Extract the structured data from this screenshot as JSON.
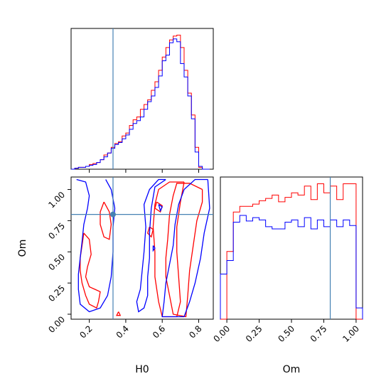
{
  "chart_data": {
    "type": "corner",
    "parameters": [
      "H0",
      "Om"
    ],
    "truth": {
      "H0": 0.33,
      "Om": 0.8
    },
    "colors": {
      "red": "#ff0000",
      "blue": "#0000ff",
      "truth": "#4682b4"
    },
    "panels": {
      "h0_hist": {
        "xlim": [
          0.1,
          0.88
        ],
        "xticks": [
          0.2,
          0.4,
          0.6,
          0.8
        ],
        "bin_edges": [
          0.1,
          0.12,
          0.14,
          0.16,
          0.18,
          0.2,
          0.22,
          0.24,
          0.26,
          0.28,
          0.3,
          0.32,
          0.34,
          0.36,
          0.38,
          0.4,
          0.42,
          0.44,
          0.46,
          0.48,
          0.5,
          0.52,
          0.54,
          0.56,
          0.58,
          0.6,
          0.62,
          0.64,
          0.66,
          0.68,
          0.7,
          0.72,
          0.74,
          0.76,
          0.78,
          0.8,
          0.82,
          0.84,
          0.86
        ],
        "red": [
          0,
          1,
          2,
          2,
          3,
          5,
          6,
          7,
          10,
          15,
          17,
          23,
          27,
          29,
          35,
          38,
          46,
          52,
          55,
          63,
          68,
          73,
          83,
          92,
          104,
          118,
          128,
          136,
          140,
          141,
          128,
          104,
          80,
          57,
          23,
          2,
          0,
          0
        ],
        "blue": [
          0,
          1,
          2,
          2,
          3,
          4,
          5,
          7,
          10,
          13,
          17,
          22,
          26,
          28,
          32,
          36,
          42,
          48,
          51,
          55,
          63,
          71,
          77,
          86,
          98,
          114,
          120,
          133,
          137,
          134,
          111,
          97,
          77,
          53,
          18,
          3,
          0,
          0
        ]
      },
      "om_hist": {
        "xlim": [
          -0.05,
          1.05
        ],
        "xticks": [
          0.0,
          0.25,
          0.5,
          0.75,
          1.0
        ],
        "xtick_labels": [
          "0.00",
          "0.25",
          "0.50",
          "0.75",
          "1.00"
        ],
        "bin_edges": [
          -0.05,
          0.0,
          0.05,
          0.1,
          0.15,
          0.2,
          0.25,
          0.3,
          0.35,
          0.4,
          0.45,
          0.5,
          0.55,
          0.6,
          0.65,
          0.7,
          0.75,
          0.8,
          0.85,
          0.9,
          0.95,
          1.0,
          1.05
        ],
        "red": [
          0,
          60,
          95,
          100,
          100,
          102,
          105,
          107,
          110,
          104,
          108,
          112,
          110,
          118,
          106,
          120,
          112,
          118,
          106,
          120,
          120,
          0
        ],
        "blue": [
          40,
          52,
          86,
          92,
          87,
          90,
          88,
          82,
          80,
          80,
          86,
          88,
          82,
          90,
          80,
          88,
          82,
          88,
          82,
          88,
          83,
          10
        ]
      },
      "joint": {
        "xlim": [
          0.1,
          0.88
        ],
        "ylim": [
          -0.04,
          1.1
        ],
        "xticks": [
          0.2,
          0.4,
          0.6,
          0.8
        ],
        "yticks": [
          0.0,
          0.25,
          0.5,
          0.75,
          1.0
        ],
        "ytick_labels": [
          "0.00",
          "0.25",
          "0.50",
          "0.75",
          "1.00"
        ],
        "red_contours": [
          [
            [
              0.72,
              1.06
            ],
            [
              0.64,
              1.06
            ],
            [
              0.58,
              1.0
            ],
            [
              0.56,
              0.88
            ],
            [
              0.55,
              0.7
            ],
            [
              0.56,
              0.5
            ],
            [
              0.56,
              0.3
            ],
            [
              0.58,
              0.1
            ],
            [
              0.6,
              -0.02
            ],
            [
              0.68,
              -0.02
            ],
            [
              0.7,
              0.1
            ],
            [
              0.69,
              0.3
            ],
            [
              0.68,
              0.5
            ],
            [
              0.68,
              0.7
            ],
            [
              0.7,
              0.9
            ],
            [
              0.72,
              1.06
            ]
          ],
          [
            [
              0.82,
              1.0
            ],
            [
              0.75,
              1.05
            ],
            [
              0.68,
              1.05
            ],
            [
              0.66,
              0.95
            ],
            [
              0.64,
              0.8
            ],
            [
              0.63,
              0.6
            ],
            [
              0.62,
              0.45
            ],
            [
              0.62,
              0.3
            ],
            [
              0.64,
              0.15
            ],
            [
              0.66,
              0.0
            ],
            [
              0.73,
              -0.02
            ],
            [
              0.74,
              0.15
            ],
            [
              0.75,
              0.35
            ],
            [
              0.77,
              0.55
            ],
            [
              0.79,
              0.75
            ],
            [
              0.82,
              0.9
            ],
            [
              0.82,
              1.0
            ]
          ],
          [
            [
              0.57,
              0.9
            ],
            [
              0.6,
              0.87
            ],
            [
              0.59,
              0.82
            ],
            [
              0.56,
              0.85
            ],
            [
              0.57,
              0.9
            ]
          ],
          [
            [
              0.53,
              0.7
            ],
            [
              0.55,
              0.68
            ],
            [
              0.54,
              0.62
            ],
            [
              0.52,
              0.65
            ],
            [
              0.53,
              0.7
            ]
          ],
          [
            [
              0.17,
              0.65
            ],
            [
              0.2,
              0.6
            ],
            [
              0.21,
              0.48
            ],
            [
              0.19,
              0.38
            ],
            [
              0.18,
              0.3
            ],
            [
              0.2,
              0.22
            ],
            [
              0.23,
              0.2
            ],
            [
              0.26,
              0.18
            ],
            [
              0.25,
              0.1
            ],
            [
              0.24,
              0.05
            ],
            [
              0.2,
              0.08
            ],
            [
              0.18,
              0.15
            ],
            [
              0.16,
              0.25
            ],
            [
              0.15,
              0.35
            ],
            [
              0.15,
              0.45
            ],
            [
              0.16,
              0.55
            ],
            [
              0.17,
              0.65
            ]
          ],
          [
            [
              0.28,
              0.9
            ],
            [
              0.31,
              0.82
            ],
            [
              0.32,
              0.72
            ],
            [
              0.31,
              0.6
            ],
            [
              0.28,
              0.62
            ],
            [
              0.26,
              0.72
            ],
            [
              0.26,
              0.82
            ],
            [
              0.28,
              0.9
            ]
          ],
          [
            [
              0.36,
              0.02
            ],
            [
              0.37,
              -0.01
            ],
            [
              0.35,
              -0.01
            ],
            [
              0.36,
              0.02
            ]
          ]
        ],
        "blue_contours": [
          [
            [
              0.85,
              1.08
            ],
            [
              0.78,
              1.08
            ],
            [
              0.72,
              1.0
            ],
            [
              0.69,
              0.88
            ],
            [
              0.67,
              0.72
            ],
            [
              0.66,
              0.55
            ],
            [
              0.64,
              0.4
            ],
            [
              0.62,
              0.25
            ],
            [
              0.61,
              0.1
            ],
            [
              0.6,
              -0.02
            ],
            [
              0.72,
              -0.02
            ],
            [
              0.75,
              0.1
            ],
            [
              0.78,
              0.25
            ],
            [
              0.81,
              0.45
            ],
            [
              0.83,
              0.65
            ],
            [
              0.86,
              0.85
            ],
            [
              0.85,
              1.08
            ]
          ],
          [
            [
              0.62,
              1.08
            ],
            [
              0.56,
              1.02
            ],
            [
              0.54,
              0.85
            ],
            [
              0.53,
              0.65
            ],
            [
              0.53,
              0.45
            ],
            [
              0.52,
              0.3
            ],
            [
              0.52,
              0.15
            ],
            [
              0.5,
              0.05
            ],
            [
              0.47,
              0.02
            ],
            [
              0.46,
              0.1
            ],
            [
              0.48,
              0.2
            ],
            [
              0.49,
              0.35
            ],
            [
              0.5,
              0.5
            ],
            [
              0.51,
              0.7
            ],
            [
              0.5,
              0.88
            ],
            [
              0.53,
              1.0
            ],
            [
              0.58,
              1.08
            ],
            [
              0.62,
              1.08
            ]
          ],
          [
            [
              0.13,
              1.08
            ],
            [
              0.18,
              1.06
            ],
            [
              0.2,
              0.95
            ],
            [
              0.19,
              0.85
            ],
            [
              0.17,
              0.72
            ],
            [
              0.16,
              0.58
            ],
            [
              0.15,
              0.45
            ],
            [
              0.14,
              0.32
            ],
            [
              0.14,
              0.2
            ],
            [
              0.15,
              0.08
            ],
            [
              0.2,
              0.02
            ],
            [
              0.26,
              0.05
            ],
            [
              0.3,
              0.15
            ],
            [
              0.32,
              0.3
            ],
            [
              0.33,
              0.5
            ],
            [
              0.33,
              0.7
            ],
            [
              0.34,
              0.85
            ],
            [
              0.32,
              1.0
            ],
            [
              0.29,
              1.08
            ]
          ],
          [
            [
              0.58,
              0.88
            ],
            [
              0.6,
              0.86
            ],
            [
              0.59,
              0.83
            ],
            [
              0.58,
              0.88
            ]
          ],
          [
            [
              0.55,
              0.55
            ],
            [
              0.56,
              0.53
            ],
            [
              0.55,
              0.51
            ],
            [
              0.55,
              0.55
            ]
          ]
        ]
      }
    }
  }
}
